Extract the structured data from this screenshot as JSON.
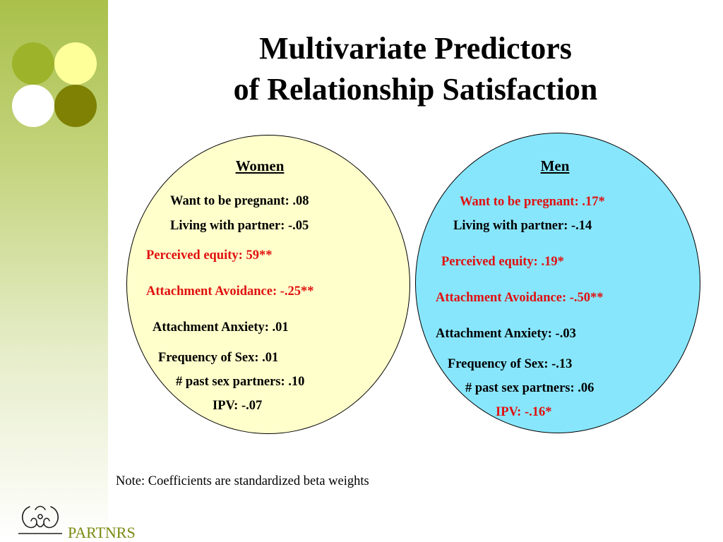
{
  "title": {
    "line1": "Multivariate Predictors",
    "line2": "of Relationship Satisfaction"
  },
  "colors": {
    "sidebar": "#a9c04a",
    "dot_green": "#9db32a",
    "dot_yellow": "#ffff99",
    "dot_white": "#ffffff",
    "dot_olive": "#7e8104",
    "women_fill": "#ffffcc",
    "men_fill": "#88e6fc",
    "significant": "#e0100f"
  },
  "women": {
    "heading": "Women",
    "predictors": [
      {
        "text": "Want to be pregnant: .08",
        "significant": false
      },
      {
        "text": "Living with partner: -.05",
        "significant": false
      },
      {
        "text": "Perceived equity: 59**",
        "significant": true
      },
      {
        "text": "Attachment Avoidance: -.25**",
        "significant": true
      },
      {
        "text": "Attachment Anxiety: .01",
        "significant": false
      },
      {
        "text": "Frequency of Sex: .01",
        "significant": false
      },
      {
        "text": "# past sex partners: .10",
        "significant": false
      },
      {
        "text": "IPV: -.07",
        "significant": false
      }
    ]
  },
  "men": {
    "heading": "Men",
    "predictors": [
      {
        "text": "Want to be pregnant: .17*",
        "significant": true
      },
      {
        "text": "Living with partner: -.14",
        "significant": false
      },
      {
        "text": "Perceived equity: .19*",
        "significant": true
      },
      {
        "text": "Attachment Avoidance: -.50**",
        "significant": true
      },
      {
        "text": "Attachment Anxiety: -.03",
        "significant": false
      },
      {
        "text": "Frequency of Sex: -.13",
        "significant": false
      },
      {
        "text": "# past sex partners: .06",
        "significant": false
      },
      {
        "text": "IPV: -.16*",
        "significant": true
      }
    ]
  },
  "note": "Note: Coefficients are standardized beta weights",
  "brand": "PARTNRS"
}
